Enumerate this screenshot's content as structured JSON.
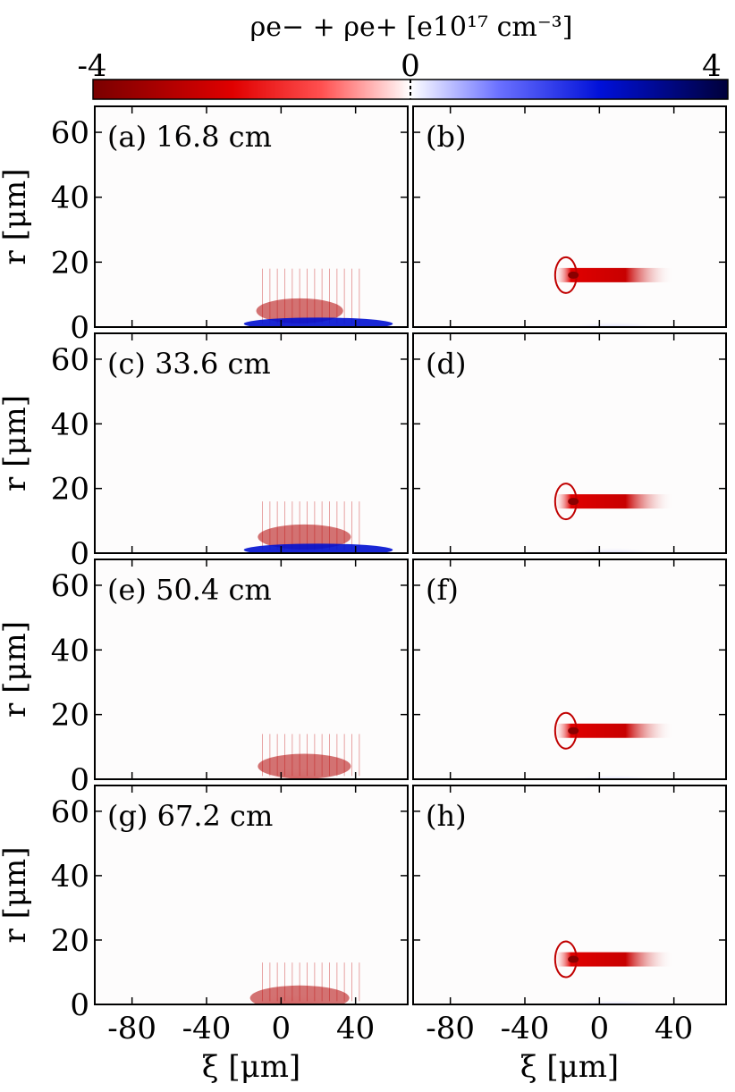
{
  "chart_data": {
    "type": "heatmap",
    "colorbar": {
      "title": "ρe− + ρe+ [e10¹⁷ cm⁻³]",
      "min": -4,
      "max": 4,
      "ticks": [
        "-4",
        "0",
        "4"
      ],
      "colors": {
        "negative_dark": "#7a0000",
        "negative": "#e80000",
        "zero": "#ffffff",
        "positive": "#0010e0",
        "positive_dark": "#000040"
      }
    },
    "x_axis": {
      "label": "ξ [μm]",
      "range": [
        -100,
        68
      ],
      "ticks": [
        -80,
        -40,
        0,
        40
      ],
      "tick_labels": [
        "-80",
        "-40",
        "0",
        "40"
      ]
    },
    "y_axis": {
      "label": "r [μm]",
      "range": [
        0,
        68
      ],
      "ticks": [
        0,
        20,
        40,
        60
      ],
      "tick_labels": [
        "0",
        "20",
        "40",
        "60"
      ]
    },
    "panels": [
      {
        "label": "(a) 16.8 cm",
        "kind": "electron",
        "blob_xi": [
          -30,
          40
        ],
        "blob_r": [
          0,
          20
        ],
        "peak_r": 5
      },
      {
        "label": "(b)",
        "kind": "positron",
        "ring_r": 16,
        "ring_xi": [
          -25,
          40
        ],
        "core_r": [
          0,
          8
        ]
      },
      {
        "label": "(c) 33.6 cm",
        "kind": "electron",
        "blob_xi": [
          -30,
          45
        ],
        "blob_r": [
          0,
          18
        ],
        "peak_r": 5
      },
      {
        "label": "(d)",
        "kind": "positron",
        "ring_r": 16,
        "ring_xi": [
          -25,
          40
        ],
        "core_r": [
          0,
          8
        ]
      },
      {
        "label": "(e) 50.4 cm",
        "kind": "electron",
        "blob_xi": [
          -30,
          45
        ],
        "blob_r": [
          0,
          16
        ],
        "peak_r": 4
      },
      {
        "label": "(f)",
        "kind": "positron",
        "ring_r": 15,
        "ring_xi": [
          -25,
          40
        ],
        "core_r": [
          0,
          6
        ]
      },
      {
        "label": "(g) 67.2 cm",
        "kind": "electron",
        "blob_xi": [
          -35,
          45
        ],
        "blob_r": [
          0,
          15
        ],
        "peak_r": 2
      },
      {
        "label": "(h)",
        "kind": "positron",
        "ring_r": 14,
        "ring_xi": [
          -25,
          40
        ],
        "core_r": [
          0,
          6
        ]
      }
    ]
  }
}
